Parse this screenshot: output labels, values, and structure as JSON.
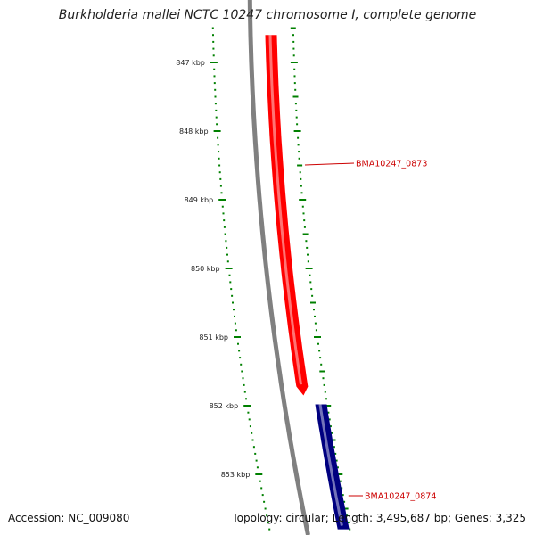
{
  "title": "Burkholderia mallei NCTC 10247 chromosome I, complete genome",
  "accession": "Accession: NC_009080",
  "summary": "Topology: circular; Length: 3,495,687 bp; Genes: 3,325",
  "colors": {
    "forward_gene": "#ff0000",
    "reverse_gene": "#000080",
    "backbone": "#808080",
    "tick": "#008000",
    "label_line": "#cc0000"
  },
  "ticks": [
    {
      "position_kbp": 847,
      "label": "847 kbp"
    },
    {
      "position_kbp": 848,
      "label": "848 kbp"
    },
    {
      "position_kbp": 849,
      "label": "849 kbp"
    },
    {
      "position_kbp": 850,
      "label": "850 kbp"
    },
    {
      "position_kbp": 851,
      "label": "851 kbp"
    },
    {
      "position_kbp": 852,
      "label": "852 kbp"
    },
    {
      "position_kbp": 853,
      "label": "853 kbp"
    }
  ],
  "genes": [
    {
      "name": "BMA10247_0873",
      "strand": "forward",
      "start_kbp": 846.6,
      "end_kbp": 851.85
    },
    {
      "name": "BMA10247_0874",
      "strand": "reverse",
      "start_kbp": 851.98,
      "end_kbp": 853.8
    }
  ]
}
